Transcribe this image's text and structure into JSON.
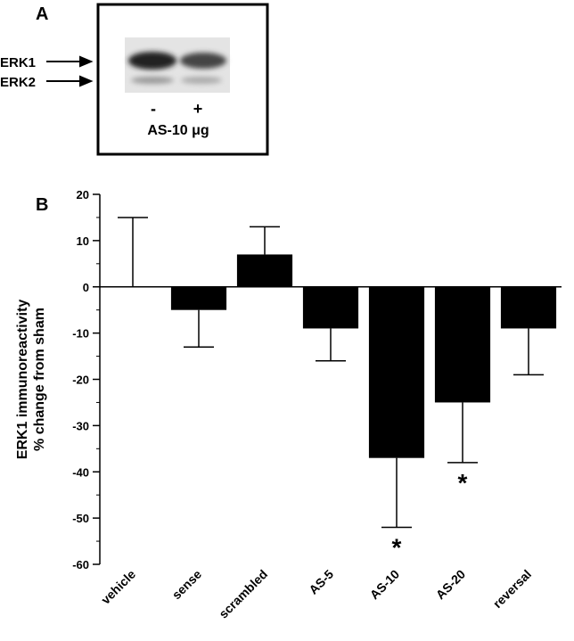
{
  "panel_a": {
    "label": "A",
    "bands": [
      "ERK1",
      "ERK2"
    ],
    "lanes": [
      "-",
      "+"
    ],
    "treatment": "AS-10 μg"
  },
  "chart_data": {
    "type": "bar",
    "panel_label": "B",
    "ylabel": [
      "ERK1 immunoreactivity",
      "% change from sham"
    ],
    "categories": [
      "vehicle",
      "sense",
      "scrambled",
      "AS-5",
      "AS-10",
      "AS-20",
      "reversal"
    ],
    "values": [
      0,
      -5,
      7,
      -9,
      -37,
      -25,
      -9
    ],
    "errors": [
      15,
      8,
      6,
      7,
      15,
      13,
      10
    ],
    "color": "#000000",
    "ylim": [
      -60,
      20
    ],
    "yticks": [
      -60,
      -50,
      -40,
      -30,
      -20,
      -10,
      0,
      10,
      20
    ],
    "yminorticks": [
      -55,
      -45,
      -35,
      -25,
      -15,
      -5,
      5,
      15
    ],
    "annotations": [
      {
        "text": "*",
        "category": "AS-10"
      },
      {
        "text": "*",
        "category": "AS-20"
      }
    ]
  }
}
